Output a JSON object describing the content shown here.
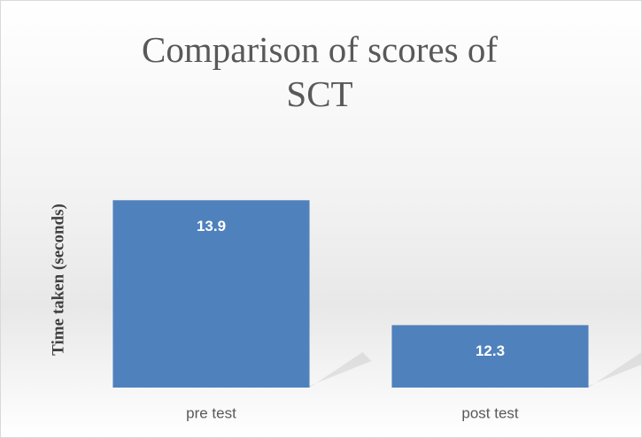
{
  "chart_data": {
    "type": "bar",
    "title": "Comparison of scores of SCT",
    "y_label": "Time taken (seconds)",
    "categories": [
      "pre test",
      "post test"
    ],
    "values": [
      13.9,
      12.3
    ],
    "color": "#4f81bd",
    "ylim": [
      11.5,
      14.3
    ]
  }
}
